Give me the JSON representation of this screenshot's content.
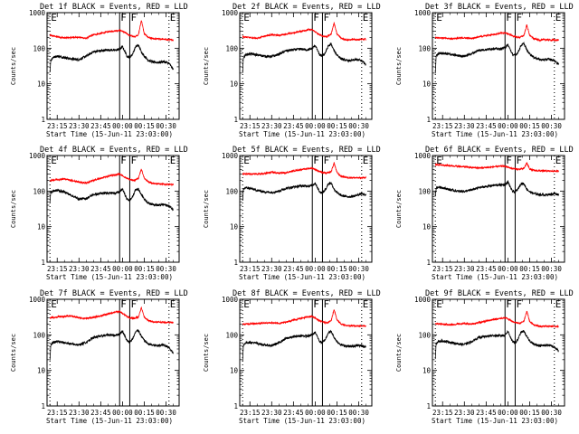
{
  "figure": {
    "panels": [
      {
        "title": "Det 1f BLACK = Events, RED = LLD"
      },
      {
        "title": "Det 2f BLACK = Events, RED = LLD"
      },
      {
        "title": "Det 3f BLACK = Events, RED = LLD"
      },
      {
        "title": "Det 4f BLACK = Events, RED = LLD"
      },
      {
        "title": "Det 5f BLACK = Events, RED = LLD"
      },
      {
        "title": "Det 6f BLACK = Events, RED = LLD"
      },
      {
        "title": "Det 7f BLACK = Events, RED = LLD"
      },
      {
        "title": "Det 8f BLACK = Events, RED = LLD"
      },
      {
        "title": "Det 9f BLACK = Events, RED = LLD"
      }
    ]
  },
  "chart_data": {
    "type": "line",
    "layout": "3x3 small multiples, one panel per detector",
    "xlabel": "Start Time (15-Jun-11 23:03:00)",
    "ylabel": "Counts/sec",
    "x_units": "minutes from 23:00",
    "xlim": [
      8,
      99
    ],
    "xticks": [
      15,
      30,
      45,
      60,
      75,
      90
    ],
    "xtick_labels": [
      "23:15",
      "23:30",
      "23:45",
      "00:00",
      "00:15",
      "00:30"
    ],
    "yscale": "log",
    "ylim": [
      1,
      1000
    ],
    "yticks": [
      1,
      10,
      100,
      1000
    ],
    "ytick_labels": [
      "1",
      "10",
      "100",
      "1000"
    ],
    "markers": [
      {
        "label": "E",
        "x": 10,
        "style": "dotted"
      },
      {
        "label": "F",
        "x": 58,
        "style": "solid"
      },
      {
        "label": "F",
        "x": 65,
        "style": "solid"
      },
      {
        "label": "E",
        "x": 92,
        "style": "dotted"
      }
    ],
    "series_colors": {
      "events": "#000000",
      "lld": "#ff0000"
    },
    "panels": [
      {
        "detector": "1f",
        "lld": {
          "name": "LLD",
          "x": [
            10,
            15,
            20,
            25,
            30,
            35,
            40,
            45,
            50,
            55,
            58,
            60,
            62,
            65,
            68,
            71,
            73,
            75,
            78,
            82,
            85,
            90,
            95
          ],
          "y": [
            230,
            210,
            195,
            200,
            205,
            190,
            240,
            260,
            290,
            310,
            320,
            300,
            270,
            230,
            210,
            240,
            620,
            250,
            200,
            180,
            185,
            175,
            170
          ]
        },
        "events": {
          "name": "Events",
          "x": [
            10,
            10.5,
            12,
            15,
            20,
            25,
            30,
            35,
            40,
            45,
            50,
            55,
            58,
            60,
            62,
            63,
            65,
            67,
            69,
            71,
            73,
            75,
            78,
            82,
            85,
            88,
            92,
            95
          ],
          "y": [
            20,
            45,
            55,
            60,
            55,
            50,
            48,
            60,
            80,
            85,
            90,
            88,
            95,
            110,
            75,
            60,
            55,
            70,
            110,
            120,
            80,
            60,
            45,
            40,
            40,
            42,
            38,
            25
          ]
        }
      },
      {
        "detector": "2f",
        "lld": {
          "name": "LLD",
          "x": [
            10,
            15,
            20,
            25,
            30,
            35,
            40,
            45,
            50,
            55,
            58,
            60,
            62,
            65,
            68,
            71,
            73,
            75,
            78,
            82,
            85,
            90,
            95
          ],
          "y": [
            210,
            200,
            190,
            220,
            240,
            230,
            250,
            270,
            300,
            330,
            330,
            290,
            250,
            220,
            210,
            250,
            520,
            250,
            190,
            170,
            175,
            175,
            180
          ]
        },
        "events": {
          "name": "Events",
          "x": [
            10,
            10.5,
            12,
            15,
            20,
            25,
            30,
            35,
            40,
            45,
            50,
            55,
            58,
            60,
            62,
            63,
            65,
            67,
            69,
            71,
            73,
            75,
            78,
            82,
            85,
            88,
            92,
            95
          ],
          "y": [
            20,
            55,
            65,
            70,
            65,
            60,
            58,
            68,
            85,
            90,
            95,
            90,
            100,
            120,
            80,
            65,
            60,
            75,
            115,
            130,
            85,
            65,
            50,
            45,
            45,
            48,
            45,
            35
          ]
        }
      },
      {
        "detector": "3f",
        "lld": {
          "name": "LLD",
          "x": [
            10,
            15,
            20,
            25,
            30,
            35,
            40,
            45,
            50,
            55,
            58,
            60,
            62,
            65,
            68,
            71,
            73,
            75,
            78,
            82,
            85,
            90,
            95
          ],
          "y": [
            200,
            195,
            185,
            190,
            195,
            190,
            210,
            225,
            245,
            265,
            270,
            255,
            235,
            210,
            200,
            230,
            450,
            230,
            185,
            170,
            175,
            170,
            170
          ]
        },
        "events": {
          "name": "Events",
          "x": [
            10,
            10.5,
            12,
            15,
            20,
            25,
            30,
            35,
            40,
            45,
            50,
            55,
            58,
            60,
            62,
            63,
            65,
            67,
            69,
            71,
            73,
            75,
            78,
            82,
            85,
            88,
            92,
            95
          ],
          "y": [
            20,
            60,
            70,
            72,
            68,
            62,
            60,
            70,
            88,
            92,
            98,
            95,
            105,
            125,
            85,
            68,
            62,
            78,
            120,
            135,
            90,
            70,
            55,
            48,
            47,
            50,
            45,
            35
          ]
        }
      },
      {
        "detector": "4f",
        "lld": {
          "name": "LLD",
          "x": [
            10,
            15,
            20,
            25,
            30,
            35,
            40,
            45,
            50,
            55,
            58,
            60,
            62,
            65,
            68,
            71,
            73,
            75,
            78,
            82,
            85,
            90,
            95
          ],
          "y": [
            200,
            210,
            220,
            200,
            180,
            170,
            200,
            230,
            260,
            290,
            300,
            270,
            240,
            210,
            200,
            230,
            420,
            230,
            180,
            160,
            160,
            155,
            155
          ]
        },
        "events": {
          "name": "Events",
          "x": [
            10,
            10.5,
            12,
            15,
            20,
            25,
            30,
            35,
            40,
            45,
            50,
            55,
            58,
            60,
            62,
            63,
            65,
            67,
            69,
            71,
            73,
            75,
            78,
            82,
            85,
            88,
            92,
            95
          ],
          "y": [
            50,
            90,
            100,
            105,
            95,
            75,
            60,
            62,
            80,
            85,
            90,
            88,
            95,
            115,
            75,
            60,
            55,
            70,
            110,
            115,
            80,
            60,
            45,
            42,
            40,
            42,
            38,
            30
          ]
        }
      },
      {
        "detector": "5f",
        "lld": {
          "name": "LLD",
          "x": [
            10,
            15,
            20,
            25,
            30,
            35,
            40,
            45,
            50,
            55,
            58,
            60,
            62,
            65,
            68,
            71,
            73,
            75,
            78,
            82,
            85,
            90,
            95
          ],
          "y": [
            310,
            300,
            300,
            310,
            340,
            320,
            330,
            370,
            400,
            430,
            440,
            410,
            370,
            330,
            320,
            350,
            620,
            330,
            260,
            240,
            240,
            235,
            240
          ]
        },
        "events": {
          "name": "Events",
          "x": [
            10,
            10.5,
            12,
            15,
            20,
            25,
            30,
            35,
            40,
            45,
            50,
            55,
            58,
            60,
            62,
            63,
            65,
            67,
            69,
            71,
            73,
            75,
            78,
            82,
            85,
            88,
            92,
            95
          ],
          "y": [
            50,
            110,
            125,
            120,
            105,
            95,
            92,
            100,
            120,
            130,
            140,
            140,
            145,
            170,
            115,
            95,
            90,
            110,
            160,
            170,
            115,
            90,
            75,
            70,
            70,
            75,
            85,
            75
          ]
        }
      },
      {
        "detector": "6f",
        "lld": {
          "name": "LLD",
          "x": [
            10,
            15,
            20,
            25,
            30,
            35,
            40,
            45,
            50,
            55,
            58,
            60,
            62,
            65,
            68,
            71,
            73,
            75,
            78,
            82,
            85,
            90,
            95
          ],
          "y": [
            560,
            540,
            520,
            500,
            480,
            460,
            450,
            460,
            480,
            500,
            500,
            470,
            440,
            420,
            410,
            430,
            620,
            420,
            380,
            370,
            370,
            365,
            365
          ]
        },
        "events": {
          "name": "Events",
          "x": [
            10,
            10.5,
            12,
            15,
            20,
            25,
            30,
            35,
            40,
            45,
            50,
            55,
            58,
            60,
            62,
            63,
            65,
            67,
            69,
            71,
            73,
            75,
            78,
            82,
            85,
            88,
            92,
            95
          ],
          "y": [
            70,
            120,
            130,
            125,
            110,
            100,
            98,
            108,
            125,
            135,
            145,
            150,
            150,
            180,
            120,
            100,
            95,
            115,
            165,
            160,
            115,
            95,
            85,
            80,
            78,
            80,
            85,
            80
          ]
        }
      },
      {
        "detector": "7f",
        "lld": {
          "name": "LLD",
          "x": [
            10,
            15,
            20,
            25,
            30,
            35,
            40,
            45,
            50,
            55,
            58,
            60,
            62,
            65,
            68,
            71,
            73,
            75,
            78,
            82,
            85,
            90,
            95
          ],
          "y": [
            300,
            320,
            330,
            340,
            300,
            290,
            310,
            340,
            390,
            440,
            450,
            400,
            350,
            300,
            290,
            320,
            580,
            310,
            250,
            230,
            230,
            225,
            225
          ]
        },
        "events": {
          "name": "Events",
          "x": [
            10,
            10.5,
            12,
            15,
            20,
            25,
            30,
            35,
            40,
            45,
            50,
            55,
            58,
            60,
            62,
            63,
            65,
            67,
            69,
            71,
            73,
            75,
            78,
            82,
            85,
            88,
            92,
            95
          ],
          "y": [
            20,
            50,
            60,
            65,
            60,
            55,
            52,
            62,
            85,
            92,
            100,
            98,
            105,
            130,
            85,
            68,
            62,
            78,
            120,
            135,
            90,
            70,
            55,
            50,
            50,
            52,
            45,
            30
          ]
        }
      },
      {
        "detector": "8f",
        "lld": {
          "name": "LLD",
          "x": [
            10,
            15,
            20,
            25,
            30,
            35,
            40,
            45,
            50,
            55,
            58,
            60,
            62,
            65,
            68,
            71,
            73,
            75,
            78,
            82,
            85,
            90,
            95
          ],
          "y": [
            200,
            205,
            210,
            215,
            220,
            210,
            230,
            260,
            290,
            320,
            330,
            300,
            260,
            230,
            220,
            250,
            520,
            260,
            200,
            180,
            180,
            178,
            180
          ]
        },
        "events": {
          "name": "Events",
          "x": [
            10,
            10.5,
            12,
            15,
            20,
            25,
            30,
            35,
            40,
            45,
            50,
            55,
            58,
            60,
            62,
            63,
            65,
            67,
            69,
            71,
            73,
            75,
            78,
            82,
            85,
            88,
            92,
            95
          ],
          "y": [
            20,
            50,
            60,
            62,
            58,
            52,
            50,
            60,
            80,
            88,
            95,
            92,
            100,
            120,
            80,
            65,
            60,
            75,
            115,
            125,
            85,
            65,
            52,
            48,
            47,
            50,
            50,
            45
          ]
        }
      },
      {
        "detector": "9f",
        "lld": {
          "name": "LLD",
          "x": [
            10,
            15,
            20,
            25,
            30,
            35,
            40,
            45,
            50,
            55,
            58,
            60,
            62,
            65,
            68,
            71,
            73,
            75,
            78,
            82,
            85,
            90,
            95
          ],
          "y": [
            210,
            200,
            190,
            200,
            210,
            200,
            220,
            245,
            270,
            290,
            300,
            280,
            250,
            220,
            210,
            240,
            470,
            240,
            190,
            175,
            175,
            172,
            172
          ]
        },
        "events": {
          "name": "Events",
          "x": [
            10,
            10.5,
            12,
            15,
            20,
            25,
            30,
            35,
            40,
            45,
            50,
            55,
            58,
            60,
            62,
            63,
            65,
            67,
            69,
            71,
            73,
            75,
            78,
            82,
            85,
            88,
            92,
            95
          ],
          "y": [
            20,
            55,
            65,
            68,
            62,
            56,
            54,
            64,
            85,
            90,
            96,
            94,
            100,
            125,
            82,
            66,
            60,
            76,
            118,
            128,
            88,
            68,
            54,
            50,
            50,
            52,
            45,
            35
          ]
        }
      }
    ]
  }
}
